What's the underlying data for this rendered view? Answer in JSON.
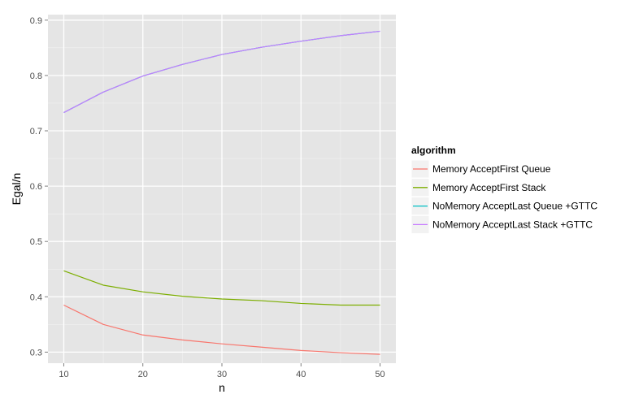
{
  "chart_data": {
    "type": "line",
    "xlabel": "n",
    "ylabel": "Egal/n",
    "xlim": [
      8,
      52
    ],
    "ylim": [
      0.28,
      0.91
    ],
    "xticks": [
      10,
      20,
      30,
      40,
      50
    ],
    "yticks": [
      0.3,
      0.4,
      0.5,
      0.6,
      0.7,
      0.8,
      0.9
    ],
    "xtick_labels": [
      "10",
      "20",
      "30",
      "40",
      "50"
    ],
    "ytick_labels": [
      "0.3",
      "0.4",
      "0.5",
      "0.6",
      "0.7",
      "0.8",
      "0.9"
    ],
    "grid": true,
    "legend": {
      "title": "algorithm",
      "position": "right"
    },
    "x": [
      10,
      15,
      20,
      25,
      30,
      35,
      40,
      45,
      50
    ],
    "series": [
      {
        "name": "Memory AcceptFirst Queue",
        "color": "#f8766d",
        "values": [
          0.385,
          0.35,
          0.331,
          0.322,
          0.315,
          0.309,
          0.303,
          0.299,
          0.296
        ]
      },
      {
        "name": "Memory AcceptFirst Stack",
        "color": "#7cae00",
        "values": [
          0.447,
          0.421,
          0.409,
          0.401,
          0.396,
          0.393,
          0.388,
          0.385,
          0.385
        ]
      },
      {
        "name": "NoMemory AcceptLast Queue +GTTC",
        "color": "#00bfc4",
        "values": [
          0.733,
          0.77,
          0.799,
          0.82,
          0.838,
          0.851,
          0.862,
          0.872,
          0.88
        ]
      },
      {
        "name": "NoMemory AcceptLast Stack +GTTC",
        "color": "#c77cff",
        "values": [
          0.733,
          0.77,
          0.799,
          0.82,
          0.838,
          0.851,
          0.862,
          0.872,
          0.88
        ]
      }
    ]
  }
}
